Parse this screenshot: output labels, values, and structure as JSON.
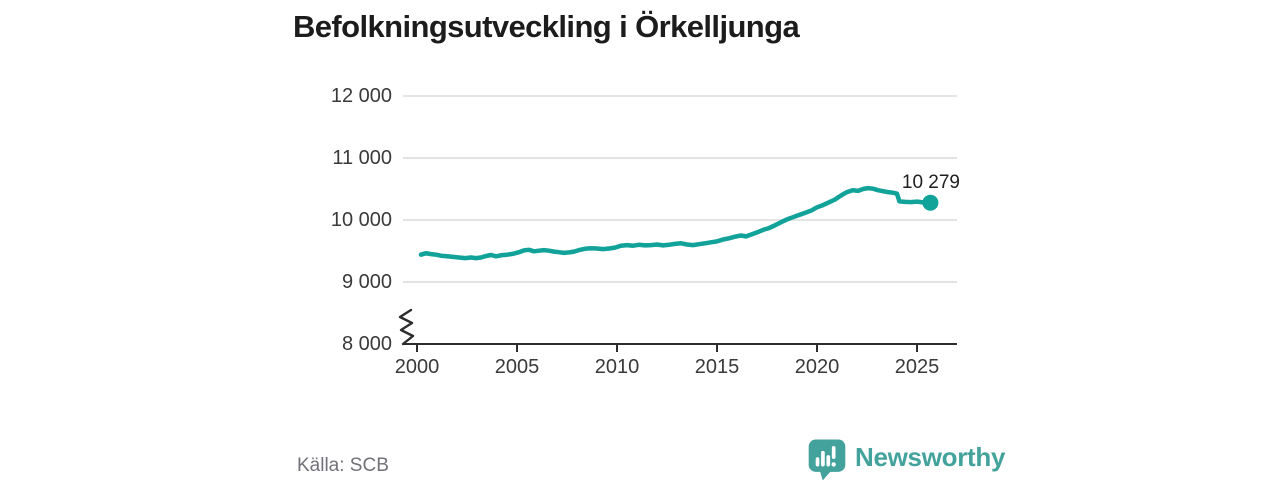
{
  "page": {
    "background": "#ffffff"
  },
  "title": "Befolkningsutveckling i Örkelljunga",
  "source": "Källa: SCB",
  "logo": {
    "text": "Newsworthy"
  },
  "colors": {
    "line": "#11a29a",
    "logo": "#43a39c",
    "grid": "#dcdcdc",
    "axis": "#2d2d2d",
    "tick_text": "#3a3a3a",
    "title": "#1c1c1c",
    "source_text": "#717179"
  },
  "chart_data": {
    "type": "line",
    "title": "Befolkningsutveckling i Örkelljunga",
    "xlabel": "",
    "ylabel": "",
    "xlim": [
      1999.5,
      2027.5
    ],
    "ylim": [
      8000,
      12000
    ],
    "axis_break_at_bottom": true,
    "grid": "horizontal",
    "legend": "none",
    "xticks": [
      {
        "value": 2000,
        "label": "2000"
      },
      {
        "value": 2005,
        "label": "2005"
      },
      {
        "value": 2010,
        "label": "2010"
      },
      {
        "value": 2015,
        "label": "2015"
      },
      {
        "value": 2020,
        "label": "2020"
      },
      {
        "value": 2025,
        "label": "2025"
      }
    ],
    "yticks": [
      {
        "value": 8000,
        "label": "8 000"
      },
      {
        "value": 9000,
        "label": "9 000"
      },
      {
        "value": 10000,
        "label": "10 000"
      },
      {
        "value": 11000,
        "label": "11 000"
      },
      {
        "value": 12000,
        "label": "12 000"
      }
    ],
    "end_label": "10 279",
    "last_value": 10279,
    "points": [
      [
        2000.2,
        9440
      ],
      [
        2000.45,
        9465
      ],
      [
        2000.7,
        9450
      ],
      [
        2000.95,
        9440
      ],
      [
        2001.2,
        9425
      ],
      [
        2001.5,
        9415
      ],
      [
        2001.8,
        9405
      ],
      [
        2002.1,
        9395
      ],
      [
        2002.4,
        9385
      ],
      [
        2002.7,
        9395
      ],
      [
        2002.95,
        9385
      ],
      [
        2003.2,
        9395
      ],
      [
        2003.45,
        9420
      ],
      [
        2003.7,
        9435
      ],
      [
        2003.95,
        9415
      ],
      [
        2004.2,
        9430
      ],
      [
        2004.5,
        9440
      ],
      [
        2004.8,
        9455
      ],
      [
        2005.1,
        9480
      ],
      [
        2005.35,
        9510
      ],
      [
        2005.6,
        9520
      ],
      [
        2005.85,
        9495
      ],
      [
        2006.1,
        9505
      ],
      [
        2006.35,
        9515
      ],
      [
        2006.6,
        9505
      ],
      [
        2006.85,
        9490
      ],
      [
        2007.1,
        9480
      ],
      [
        2007.35,
        9470
      ],
      [
        2007.6,
        9478
      ],
      [
        2007.85,
        9490
      ],
      [
        2008.1,
        9515
      ],
      [
        2008.4,
        9535
      ],
      [
        2008.7,
        9545
      ],
      [
        2009.0,
        9540
      ],
      [
        2009.3,
        9530
      ],
      [
        2009.6,
        9540
      ],
      [
        2009.9,
        9555
      ],
      [
        2010.2,
        9585
      ],
      [
        2010.5,
        9595
      ],
      [
        2010.8,
        9585
      ],
      [
        2011.1,
        9600
      ],
      [
        2011.4,
        9590
      ],
      [
        2011.7,
        9595
      ],
      [
        2012.0,
        9605
      ],
      [
        2012.3,
        9590
      ],
      [
        2012.6,
        9600
      ],
      [
        2012.9,
        9615
      ],
      [
        2013.2,
        9625
      ],
      [
        2013.5,
        9605
      ],
      [
        2013.8,
        9595
      ],
      [
        2014.1,
        9610
      ],
      [
        2014.4,
        9625
      ],
      [
        2014.7,
        9640
      ],
      [
        2015.0,
        9655
      ],
      [
        2015.3,
        9685
      ],
      [
        2015.6,
        9705
      ],
      [
        2015.9,
        9730
      ],
      [
        2016.2,
        9750
      ],
      [
        2016.45,
        9735
      ],
      [
        2016.7,
        9765
      ],
      [
        2017.0,
        9800
      ],
      [
        2017.3,
        9840
      ],
      [
        2017.6,
        9870
      ],
      [
        2017.9,
        9915
      ],
      [
        2018.2,
        9965
      ],
      [
        2018.5,
        10010
      ],
      [
        2018.8,
        10045
      ],
      [
        2019.1,
        10080
      ],
      [
        2019.4,
        10115
      ],
      [
        2019.7,
        10150
      ],
      [
        2020.0,
        10205
      ],
      [
        2020.3,
        10240
      ],
      [
        2020.6,
        10285
      ],
      [
        2020.9,
        10330
      ],
      [
        2021.2,
        10395
      ],
      [
        2021.5,
        10450
      ],
      [
        2021.8,
        10480
      ],
      [
        2022.05,
        10470
      ],
      [
        2022.3,
        10500
      ],
      [
        2022.55,
        10515
      ],
      [
        2022.8,
        10505
      ],
      [
        2023.05,
        10480
      ],
      [
        2023.3,
        10465
      ],
      [
        2023.55,
        10450
      ],
      [
        2023.8,
        10440
      ],
      [
        2024.0,
        10425
      ],
      [
        2024.12,
        10300
      ],
      [
        2024.4,
        10292
      ],
      [
        2024.7,
        10288
      ],
      [
        2025.0,
        10296
      ],
      [
        2025.3,
        10284
      ],
      [
        2025.67,
        10279
      ]
    ]
  }
}
